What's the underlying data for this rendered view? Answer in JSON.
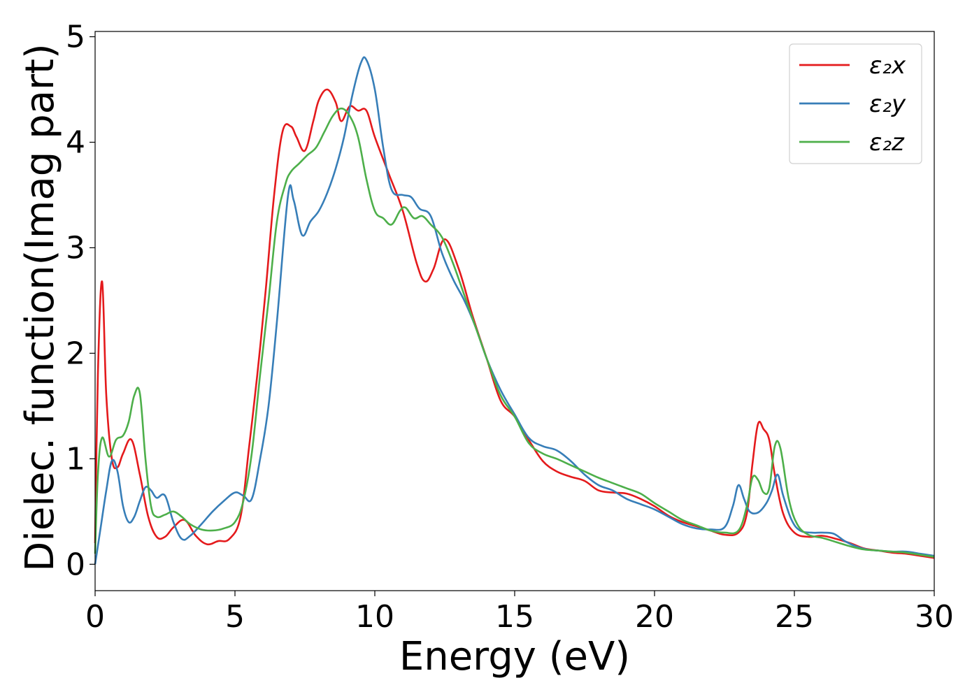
{
  "chart_data": {
    "type": "line",
    "title": "",
    "xlabel": "Energy (eV)",
    "ylabel": "Dielec. function(Imag part)",
    "xlim": [
      0,
      30
    ],
    "ylim": [
      -0.25,
      5.05
    ],
    "xticks": [
      0,
      5,
      10,
      15,
      20,
      25,
      30
    ],
    "yticks": [
      0,
      1,
      2,
      3,
      4,
      5
    ],
    "grid": false,
    "legend_position": "top-right",
    "series": [
      {
        "name": "ε₂x",
        "color": "#e41a1c",
        "x": [
          0,
          0.1,
          0.25,
          0.4,
          0.6,
          0.8,
          1.0,
          1.3,
          1.6,
          1.9,
          2.2,
          2.5,
          2.8,
          3.2,
          3.6,
          4.0,
          4.4,
          4.8,
          5.2,
          5.5,
          5.8,
          6.1,
          6.4,
          6.7,
          7.0,
          7.2,
          7.5,
          7.8,
          8.0,
          8.3,
          8.6,
          8.8,
          9.1,
          9.4,
          9.7,
          10.0,
          10.5,
          11.0,
          11.5,
          11.8,
          12.1,
          12.5,
          13.0,
          13.5,
          14.0,
          14.5,
          15.0,
          15.5,
          16.0,
          16.5,
          17.0,
          17.5,
          18.0,
          18.5,
          19.0,
          19.5,
          20.0,
          20.5,
          21.0,
          21.5,
          22.0,
          22.5,
          23.0,
          23.3,
          23.5,
          23.7,
          23.9,
          24.1,
          24.3,
          24.6,
          25.0,
          25.5,
          26.0,
          26.5,
          27.0,
          27.5,
          28.0,
          28.5,
          29.0,
          29.5,
          30.0
        ],
        "y": [
          0.2,
          1.8,
          2.68,
          1.6,
          1.0,
          0.92,
          1.05,
          1.18,
          0.85,
          0.45,
          0.26,
          0.26,
          0.35,
          0.42,
          0.27,
          0.19,
          0.22,
          0.24,
          0.45,
          1.1,
          1.8,
          2.6,
          3.5,
          4.1,
          4.15,
          4.05,
          3.92,
          4.2,
          4.4,
          4.5,
          4.38,
          4.2,
          4.34,
          4.3,
          4.3,
          4.05,
          3.7,
          3.35,
          2.85,
          2.68,
          2.8,
          3.08,
          2.8,
          2.35,
          1.95,
          1.55,
          1.4,
          1.18,
          0.98,
          0.88,
          0.83,
          0.79,
          0.7,
          0.68,
          0.67,
          0.62,
          0.55,
          0.46,
          0.4,
          0.36,
          0.32,
          0.28,
          0.3,
          0.48,
          0.95,
          1.33,
          1.28,
          1.18,
          0.85,
          0.48,
          0.3,
          0.26,
          0.27,
          0.24,
          0.2,
          0.15,
          0.13,
          0.11,
          0.1,
          0.08,
          0.06
        ]
      },
      {
        "name": "ε₂y",
        "color": "#377eb8",
        "x": [
          0,
          0.2,
          0.4,
          0.6,
          0.8,
          1.0,
          1.2,
          1.4,
          1.6,
          1.8,
          2.0,
          2.2,
          2.5,
          2.8,
          3.1,
          3.4,
          3.8,
          4.2,
          4.6,
          5.0,
          5.3,
          5.6,
          5.9,
          6.2,
          6.5,
          6.9,
          7.1,
          7.4,
          7.7,
          8.0,
          8.3,
          8.6,
          8.9,
          9.2,
          9.5,
          9.7,
          10.0,
          10.3,
          10.6,
          11.0,
          11.3,
          11.6,
          12.0,
          12.4,
          12.8,
          13.2,
          13.6,
          14.0,
          14.5,
          15.0,
          15.5,
          16.0,
          16.5,
          17.0,
          17.5,
          18.0,
          18.5,
          19.0,
          19.5,
          20.0,
          20.5,
          21.0,
          21.5,
          22.0,
          22.5,
          22.8,
          23.0,
          23.2,
          23.4,
          23.7,
          24.0,
          24.2,
          24.4,
          24.6,
          24.9,
          25.2,
          25.6,
          26.0,
          26.4,
          26.8,
          27.2,
          27.6,
          28.0,
          28.5,
          29.0,
          29.5,
          30.0
        ],
        "y": [
          0,
          0.35,
          0.7,
          0.98,
          0.88,
          0.55,
          0.4,
          0.45,
          0.6,
          0.73,
          0.7,
          0.63,
          0.65,
          0.4,
          0.24,
          0.27,
          0.38,
          0.5,
          0.6,
          0.68,
          0.65,
          0.62,
          1.0,
          1.5,
          2.3,
          3.5,
          3.45,
          3.12,
          3.25,
          3.35,
          3.52,
          3.75,
          4.05,
          4.45,
          4.75,
          4.78,
          4.5,
          3.95,
          3.55,
          3.5,
          3.48,
          3.37,
          3.3,
          2.95,
          2.7,
          2.5,
          2.25,
          1.95,
          1.65,
          1.42,
          1.2,
          1.12,
          1.08,
          0.98,
          0.85,
          0.75,
          0.7,
          0.62,
          0.57,
          0.52,
          0.45,
          0.38,
          0.34,
          0.33,
          0.35,
          0.55,
          0.75,
          0.62,
          0.5,
          0.49,
          0.58,
          0.7,
          0.85,
          0.65,
          0.42,
          0.32,
          0.3,
          0.3,
          0.29,
          0.22,
          0.17,
          0.14,
          0.13,
          0.12,
          0.12,
          0.1,
          0.08
        ]
      },
      {
        "name": "ε₂z",
        "color": "#4daf4a",
        "x": [
          0,
          0.1,
          0.25,
          0.5,
          0.75,
          1.0,
          1.2,
          1.4,
          1.6,
          1.8,
          2.0,
          2.2,
          2.5,
          2.8,
          3.1,
          3.4,
          3.8,
          4.2,
          4.6,
          5.0,
          5.3,
          5.6,
          5.9,
          6.2,
          6.5,
          6.8,
          7.0,
          7.3,
          7.6,
          7.9,
          8.2,
          8.5,
          8.8,
          9.1,
          9.4,
          9.7,
          10.0,
          10.3,
          10.6,
          10.9,
          11.1,
          11.4,
          11.7,
          12.0,
          12.4,
          12.8,
          13.2,
          13.6,
          14.0,
          14.5,
          15.0,
          15.5,
          16.0,
          16.5,
          17.0,
          17.5,
          18.0,
          18.5,
          19.0,
          19.5,
          20.0,
          20.5,
          21.0,
          21.5,
          22.0,
          22.5,
          23.0,
          23.3,
          23.5,
          23.7,
          23.9,
          24.1,
          24.3,
          24.5,
          24.8,
          25.1,
          25.5,
          26.0,
          26.5,
          27.0,
          27.5,
          28.0,
          28.5,
          29.0,
          29.5,
          30.0
        ],
        "y": [
          0.1,
          0.85,
          1.2,
          1.02,
          1.18,
          1.22,
          1.35,
          1.6,
          1.62,
          1.0,
          0.55,
          0.45,
          0.47,
          0.5,
          0.45,
          0.38,
          0.33,
          0.32,
          0.34,
          0.4,
          0.6,
          1.05,
          1.8,
          2.5,
          3.25,
          3.6,
          3.72,
          3.8,
          3.88,
          3.95,
          4.1,
          4.25,
          4.32,
          4.25,
          4.05,
          3.65,
          3.35,
          3.28,
          3.22,
          3.35,
          3.38,
          3.28,
          3.3,
          3.22,
          3.1,
          2.85,
          2.55,
          2.25,
          1.95,
          1.6,
          1.4,
          1.15,
          1.05,
          1.0,
          0.94,
          0.88,
          0.82,
          0.77,
          0.72,
          0.67,
          0.58,
          0.5,
          0.42,
          0.37,
          0.32,
          0.3,
          0.32,
          0.55,
          0.82,
          0.8,
          0.68,
          0.72,
          1.12,
          1.1,
          0.62,
          0.38,
          0.28,
          0.25,
          0.21,
          0.17,
          0.14,
          0.13,
          0.12,
          0.11,
          0.09,
          0.07
        ]
      }
    ]
  }
}
